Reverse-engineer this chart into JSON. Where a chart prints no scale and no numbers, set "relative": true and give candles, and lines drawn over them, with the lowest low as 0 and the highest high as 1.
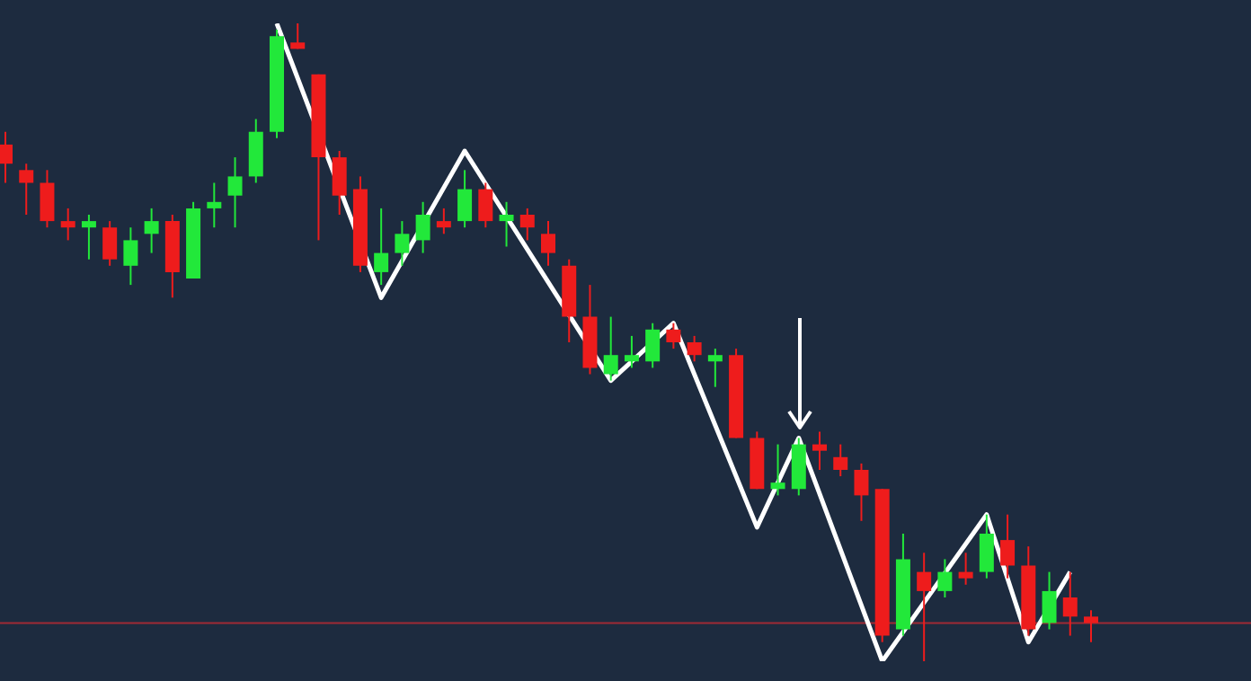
{
  "chart_data": {
    "type": "candlestick",
    "relative": true,
    "categories": [
      null,
      null,
      null,
      null,
      null,
      null,
      null,
      null,
      null,
      null,
      null,
      null,
      null,
      null,
      null,
      null,
      null,
      null,
      null,
      null,
      null,
      null,
      null,
      null,
      null,
      null,
      null,
      null,
      null,
      null,
      null,
      null,
      null,
      null,
      null,
      null,
      null,
      null,
      null,
      null,
      null,
      null,
      null,
      null,
      null,
      null,
      null,
      null,
      null,
      null,
      null,
      null,
      null
    ],
    "ohlc": [
      [
        0.81,
        0.83,
        0.75,
        0.78
      ],
      [
        0.77,
        0.78,
        0.7,
        0.75
      ],
      [
        0.75,
        0.77,
        0.68,
        0.69
      ],
      [
        0.69,
        0.71,
        0.66,
        0.68
      ],
      [
        0.68,
        0.7,
        0.63,
        0.69
      ],
      [
        0.68,
        0.69,
        0.62,
        0.63
      ],
      [
        0.62,
        0.68,
        0.59,
        0.66
      ],
      [
        0.67,
        0.71,
        0.64,
        0.69
      ],
      [
        0.69,
        0.7,
        0.57,
        0.61
      ],
      [
        0.6,
        0.72,
        0.6,
        0.71
      ],
      [
        0.71,
        0.75,
        0.68,
        0.72
      ],
      [
        0.73,
        0.79,
        0.68,
        0.76
      ],
      [
        0.76,
        0.85,
        0.75,
        0.83
      ],
      [
        0.83,
        0.99,
        0.82,
        0.98
      ],
      [
        0.97,
        1.0,
        0.96,
        0.96
      ],
      [
        0.92,
        0.92,
        0.66,
        0.79
      ],
      [
        0.79,
        0.8,
        0.7,
        0.73
      ],
      [
        0.74,
        0.76,
        0.61,
        0.62
      ],
      [
        0.61,
        0.71,
        0.59,
        0.64
      ],
      [
        0.64,
        0.69,
        0.62,
        0.67
      ],
      [
        0.66,
        0.72,
        0.64,
        0.7
      ],
      [
        0.69,
        0.71,
        0.67,
        0.68
      ],
      [
        0.69,
        0.77,
        0.68,
        0.74
      ],
      [
        0.74,
        0.75,
        0.68,
        0.69
      ],
      [
        0.69,
        0.72,
        0.65,
        0.7
      ],
      [
        0.7,
        0.71,
        0.66,
        0.68
      ],
      [
        0.67,
        0.69,
        0.62,
        0.64
      ],
      [
        0.62,
        0.63,
        0.5,
        0.54
      ],
      [
        0.54,
        0.59,
        0.45,
        0.46
      ],
      [
        0.45,
        0.54,
        0.44,
        0.48
      ],
      [
        0.47,
        0.51,
        0.46,
        0.48
      ],
      [
        0.47,
        0.53,
        0.46,
        0.52
      ],
      [
        0.52,
        0.53,
        0.49,
        0.5
      ],
      [
        0.5,
        0.51,
        0.47,
        0.48
      ],
      [
        0.47,
        0.49,
        0.43,
        0.48
      ],
      [
        0.48,
        0.49,
        0.35,
        0.35
      ],
      [
        0.35,
        0.36,
        0.27,
        0.27
      ],
      [
        0.27,
        0.34,
        0.26,
        0.28
      ],
      [
        0.27,
        0.35,
        0.26,
        0.34
      ],
      [
        0.34,
        0.36,
        0.3,
        0.33
      ],
      [
        0.32,
        0.34,
        0.29,
        0.3
      ],
      [
        0.3,
        0.31,
        0.22,
        0.26
      ],
      [
        0.27,
        0.27,
        0.03,
        0.04
      ],
      [
        0.05,
        0.2,
        0.04,
        0.16
      ],
      [
        0.14,
        0.17,
        0,
        0.11
      ],
      [
        0.11,
        0.16,
        0.1,
        0.14
      ],
      [
        0.14,
        0.17,
        0.12,
        0.13
      ],
      [
        0.14,
        0.23,
        0.13,
        0.2
      ],
      [
        0.19,
        0.23,
        0.13,
        0.15
      ],
      [
        0.15,
        0.18,
        0.04,
        0.05
      ],
      [
        0.06,
        0.14,
        0.05,
        0.11
      ],
      [
        0.1,
        0.14,
        0.04,
        0.07
      ],
      [
        0.07,
        0.08,
        0.03,
        0.06
      ]
    ],
    "colors": [
      "#ee1c1c",
      "#ee1c1c",
      "#ee1c1c",
      "#ee1c1c",
      "#22e83a",
      "#ee1c1c",
      "#22e83a",
      "#22e83a",
      "#ee1c1c",
      "#22e83a",
      "#22e83a",
      "#22e83a",
      "#22e83a",
      "#22e83a",
      "#ee1c1c",
      "#ee1c1c",
      "#ee1c1c",
      "#ee1c1c",
      "#22e83a",
      "#22e83a",
      "#22e83a",
      "#ee1c1c",
      "#22e83a",
      "#ee1c1c",
      "#22e83a",
      "#ee1c1c",
      "#ee1c1c",
      "#ee1c1c",
      "#ee1c1c",
      "#22e83a",
      "#22e83a",
      "#22e83a",
      "#ee1c1c",
      "#ee1c1c",
      "#22e83a",
      "#ee1c1c",
      "#ee1c1c",
      "#22e83a",
      "#22e83a",
      "#ee1c1c",
      "#ee1c1c",
      "#ee1c1c",
      "#ee1c1c",
      "#22e83a",
      "#ee1c1c",
      "#22e83a",
      "#ee1c1c",
      "#22e83a",
      "#ee1c1c",
      "#ee1c1c",
      "#22e83a",
      "#ee1c1c",
      "#ee1c1c"
    ],
    "series": [
      {
        "type": "line",
        "color": "#ffffff",
        "values": [
          null,
          null,
          null,
          null,
          null,
          null,
          null,
          null,
          null,
          null,
          null,
          null,
          null,
          1.0,
          null,
          null,
          null,
          null,
          0.57,
          null,
          null,
          null,
          0.8,
          null,
          null,
          null,
          null,
          null,
          null,
          0.44,
          null,
          null,
          0.53,
          null,
          null,
          null,
          0.21,
          null,
          0.35,
          null,
          null,
          null,
          0,
          null,
          null,
          null,
          null,
          0.23,
          null,
          0.03,
          null,
          0.14,
          null
        ]
      }
    ],
    "ref_lines": [
      {
        "axis": "y",
        "value": 0.06,
        "color": "#a02a35"
      }
    ]
  }
}
